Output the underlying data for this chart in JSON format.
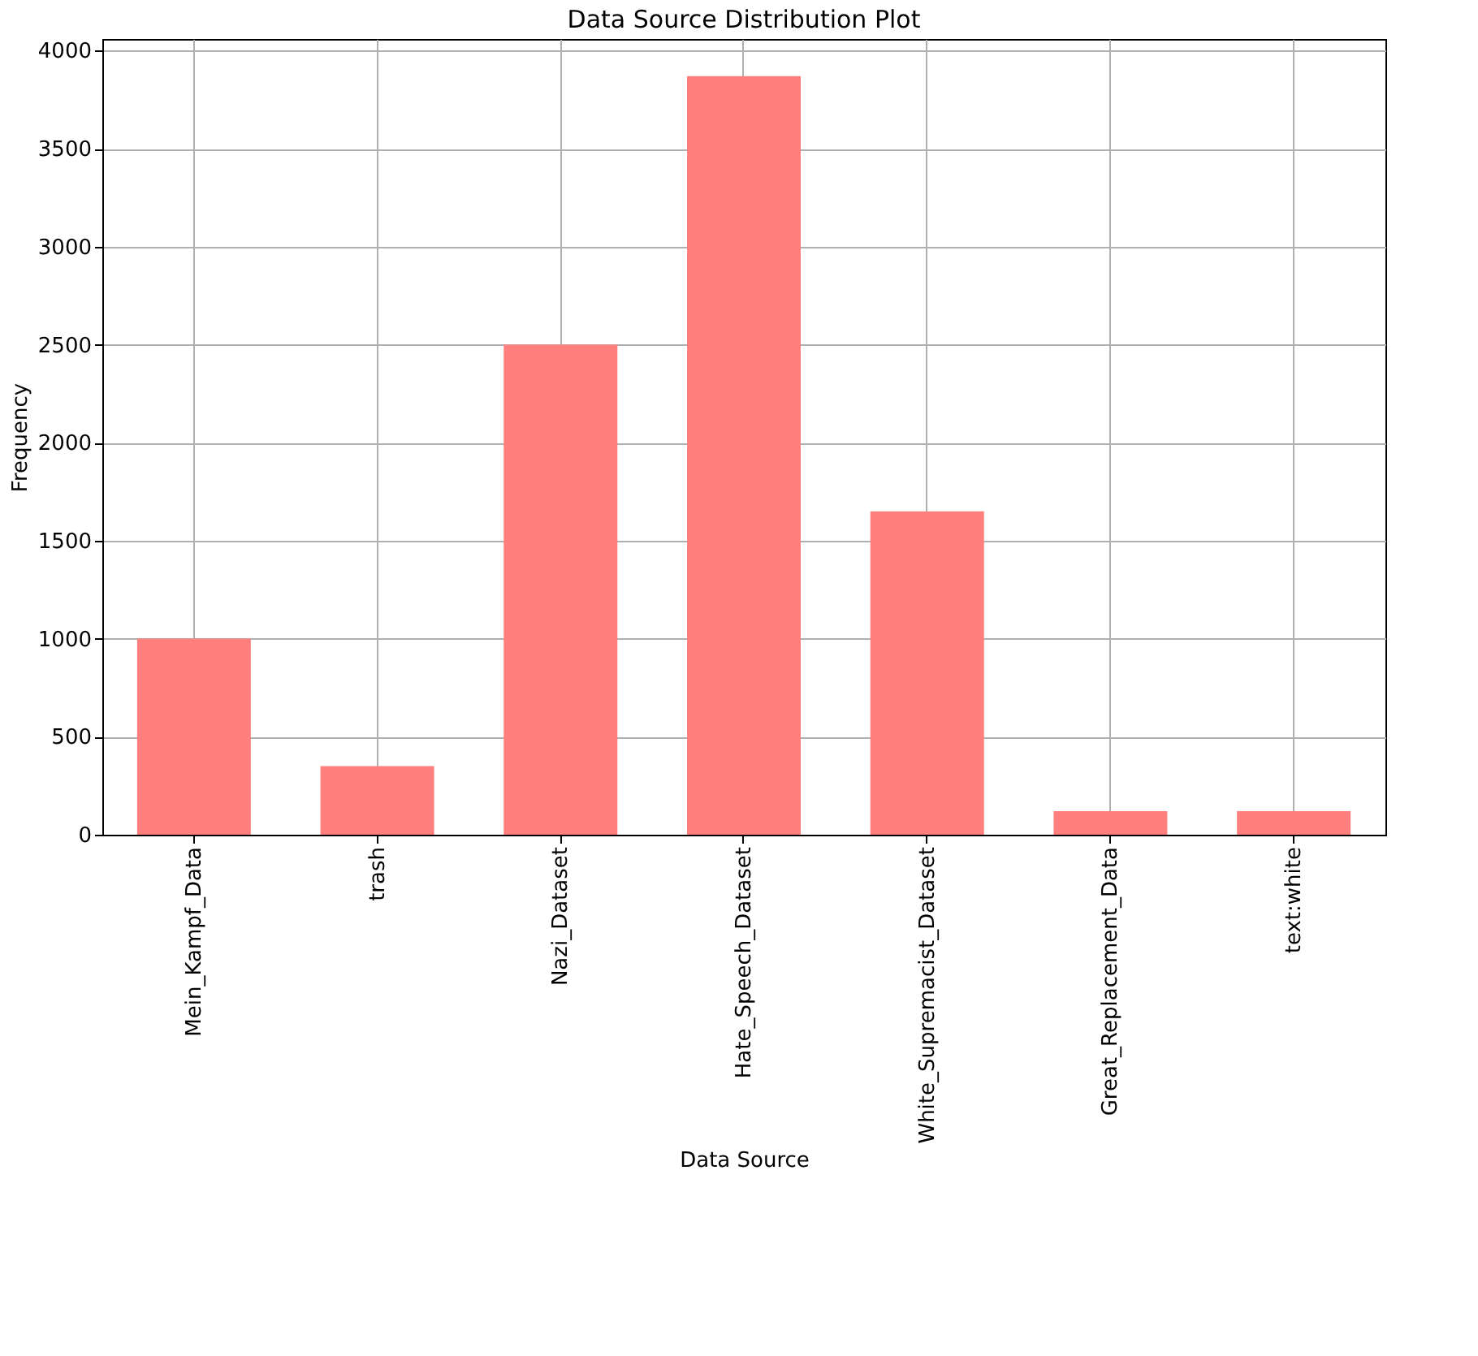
{
  "chart_data": {
    "type": "bar",
    "title": "Data Source Distribution Plot",
    "xlabel": "Data Source",
    "ylabel": "Frequency",
    "categories": [
      "Mein_Kampf_Data",
      "trash",
      "Nazi_Dataset",
      "Hate_Speech_Dataset",
      "White_Supremacist_Dataset",
      "Great_Replacement_Data",
      "text:white"
    ],
    "values": [
      1000,
      350,
      2500,
      3870,
      1650,
      120,
      120
    ],
    "color": "#ff7f7f",
    "ylim": [
      0,
      4060
    ],
    "yticks": [
      0,
      500,
      1000,
      1500,
      2000,
      2500,
      3000,
      3500,
      4000
    ],
    "grid": true
  }
}
